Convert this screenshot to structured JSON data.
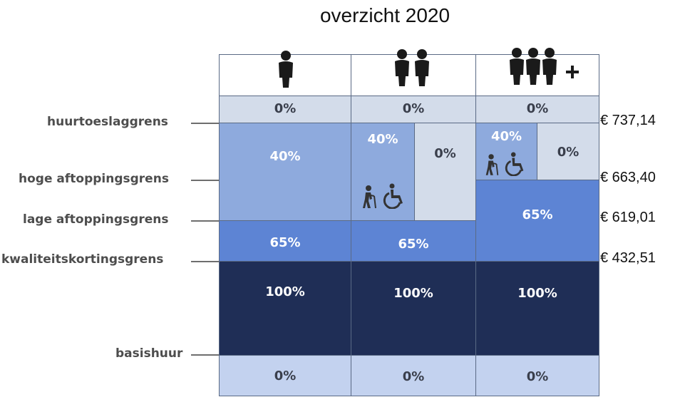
{
  "title": "overzicht 2020",
  "labels": {
    "huurtoeslaggrens": "huurtoeslaggrens",
    "hoge_aftoppingsgrens": "hoge aftoppingsgrens",
    "lage_aftoppingsgrens": "lage aftoppingsgrens",
    "kwaliteitskortingsgrens": "kwaliteitskortingsgrens",
    "basishuur": "basishuur"
  },
  "prices": {
    "huurtoeslaggrens": "€ 737,14",
    "hoge_aftoppingsgrens": "€ 663,40",
    "lage_aftoppingsgrens": "€ 619,01",
    "kwaliteitskortingsgrens": "€ 432,51"
  },
  "columns": [
    {
      "icon": "one-person-icon",
      "top": "0%",
      "mid_1": "40%",
      "mid_2": "65%",
      "bottom_band": "100%",
      "base": "0%"
    },
    {
      "icon": "two-persons-icon",
      "top": "0%",
      "elderly_disabled": "40%",
      "other": "0%",
      "mid_2": "65%",
      "bottom_band": "100%",
      "base": "0%"
    },
    {
      "icon": "three-plus-persons-icon",
      "top": "0%",
      "elderly_disabled": "40%",
      "other": "0%",
      "mid_2": "65%",
      "bottom_band": "100%",
      "base": "0%"
    }
  ],
  "icons": {
    "elderly": "elderly-person-icon",
    "wheelchair": "wheelchair-icon"
  }
}
